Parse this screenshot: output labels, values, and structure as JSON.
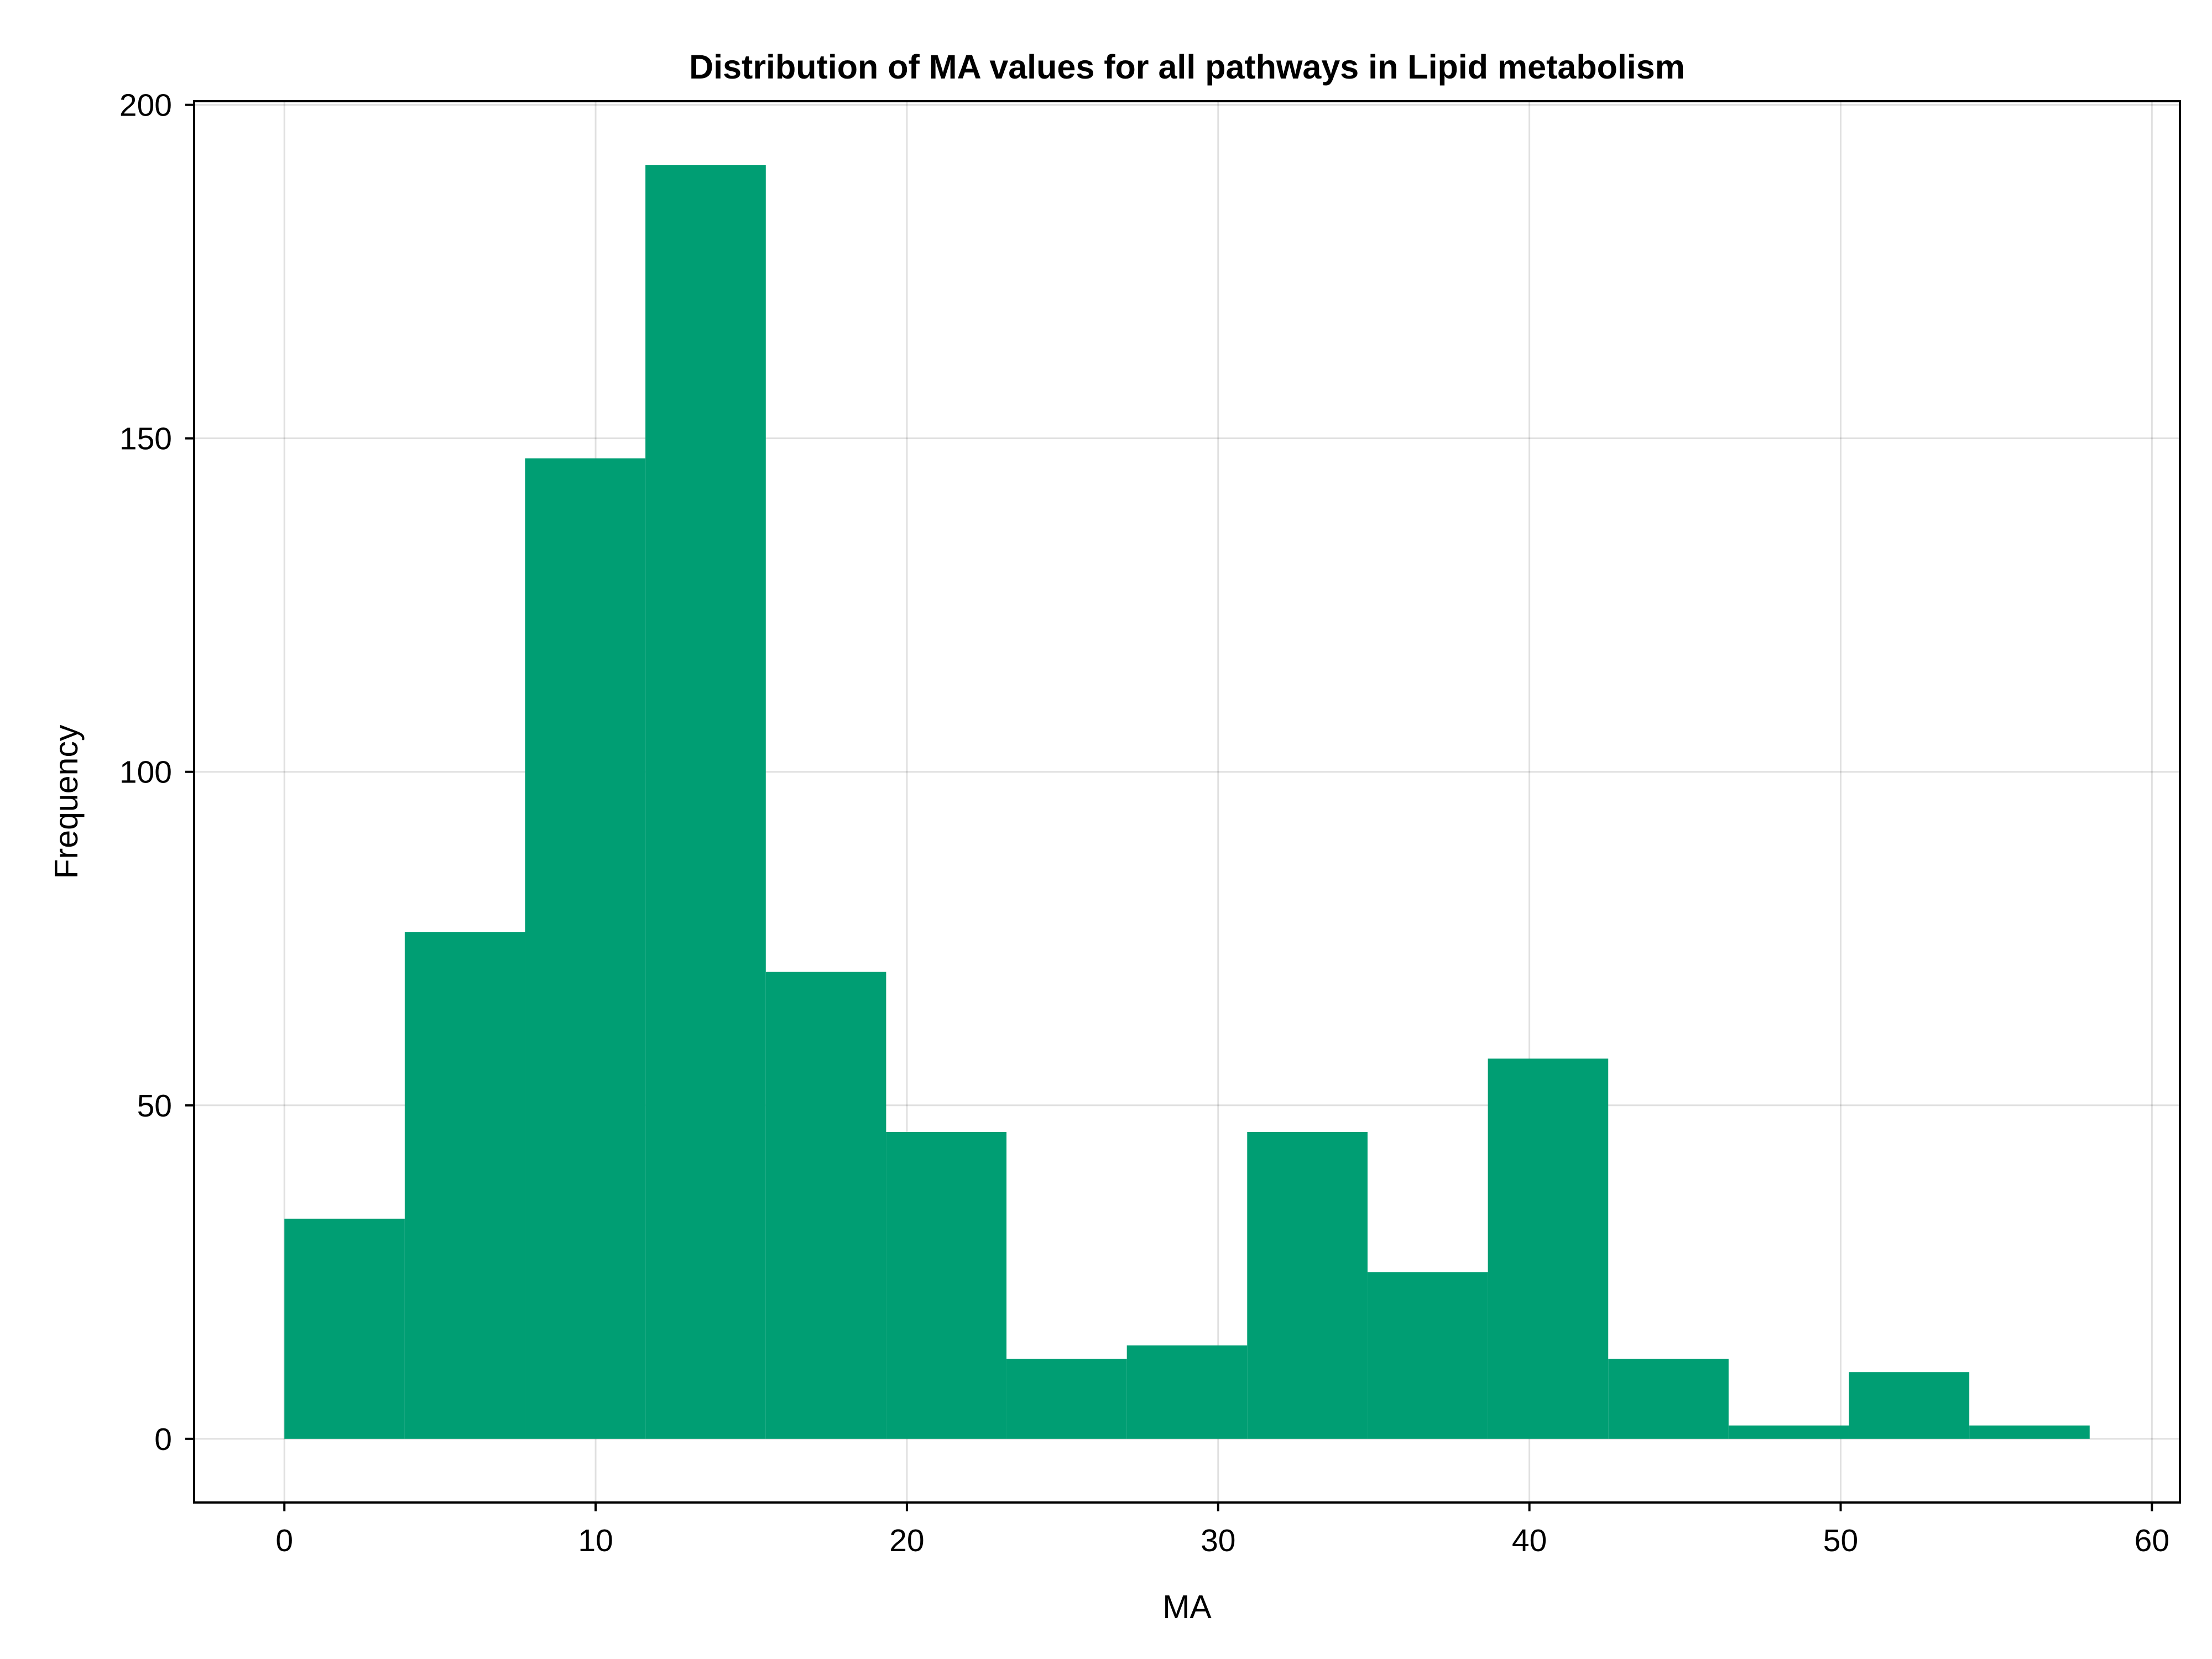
{
  "chart_data": {
    "type": "bar",
    "title": "Distribution of MA values for all pathways in Lipid metabolism",
    "xlabel": "MA",
    "ylabel": "Frequency",
    "bin_edges": [
      0,
      3.867,
      7.733,
      11.6,
      15.467,
      19.333,
      23.2,
      27.067,
      30.933,
      34.8,
      38.667,
      42.533,
      46.4,
      50.267,
      54.133,
      58
    ],
    "values": [
      33,
      76,
      147,
      191,
      70,
      46,
      12,
      14,
      46,
      25,
      57,
      12,
      2,
      10,
      2
    ],
    "xlim": [
      -2.9,
      60.9
    ],
    "ylim": [
      -9.55,
      200.55
    ],
    "xticks": [
      0,
      10,
      20,
      30,
      40,
      50,
      60
    ],
    "xtick_labels": [
      "0",
      "10",
      "20",
      "30",
      "40",
      "50",
      "60"
    ],
    "yticks": [
      0,
      50,
      100,
      150,
      200
    ],
    "ytick_labels": [
      "0",
      "50",
      "100",
      "150",
      "200"
    ],
    "grid": true,
    "bar_color": "#009e73"
  }
}
